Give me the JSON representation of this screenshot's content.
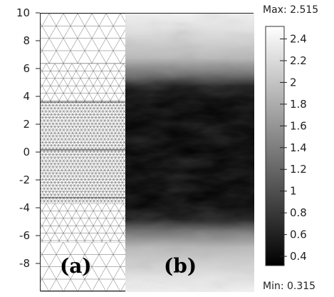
{
  "y_axis": {
    "ticks": [
      "10",
      "8",
      "6",
      "4",
      "2",
      "0",
      "-2",
      "-4",
      "-6",
      "-8"
    ],
    "range": [
      -10,
      10
    ]
  },
  "panels": {
    "a_label": "(a)",
    "b_label": "(b)"
  },
  "colorbar": {
    "max_text": "Max: 2.515",
    "min_text": "Min: 0.315",
    "ticks": [
      "2.4",
      "2.2",
      "2",
      "1.8",
      "1.6",
      "1.4",
      "1.2",
      "1",
      "0.8",
      "0.6",
      "0.4"
    ],
    "range": [
      0.315,
      2.515
    ],
    "colormap": "grayscale"
  },
  "colors": {
    "mesh_lines": "#6a6a6a",
    "dark_band": "#000000",
    "light_region": "#f2f2f2"
  }
}
